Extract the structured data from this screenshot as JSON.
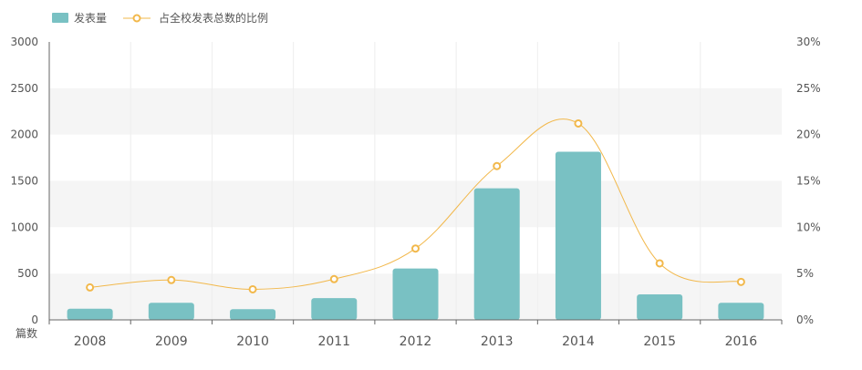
{
  "colors": {
    "bar": "#79c1c3",
    "line": "#f2b84b",
    "band": "#f5f5f5",
    "axis": "#666666",
    "vgrid": "#eeeeee"
  },
  "chart_data": {
    "type": "bar",
    "categories": [
      "2008",
      "2009",
      "2010",
      "2011",
      "2012",
      "2013",
      "2014",
      "2015",
      "2016"
    ],
    "series": [
      {
        "name": "发表量",
        "type": "bar",
        "axis": "left",
        "values": [
          120,
          185,
          115,
          235,
          555,
          1420,
          1815,
          275,
          185
        ]
      },
      {
        "name": "占全校发表总数的比例",
        "type": "line",
        "axis": "right",
        "values": [
          3.5,
          4.3,
          3.3,
          4.4,
          7.7,
          16.6,
          21.2,
          6.1,
          4.1
        ]
      }
    ],
    "y_left": {
      "label": "篇数",
      "min": 0,
      "max": 3000,
      "ticks": [
        "0",
        "500",
        "1000",
        "1500",
        "2000",
        "2500",
        "3000"
      ]
    },
    "y_right": {
      "min": 0,
      "max": 30,
      "ticks": [
        "0%",
        "5%",
        "10%",
        "15%",
        "20%",
        "25%",
        "30%"
      ]
    },
    "legend": {
      "position": "top-left"
    },
    "grid": {
      "horizontal_bands": true,
      "vertical_lines": true
    }
  }
}
